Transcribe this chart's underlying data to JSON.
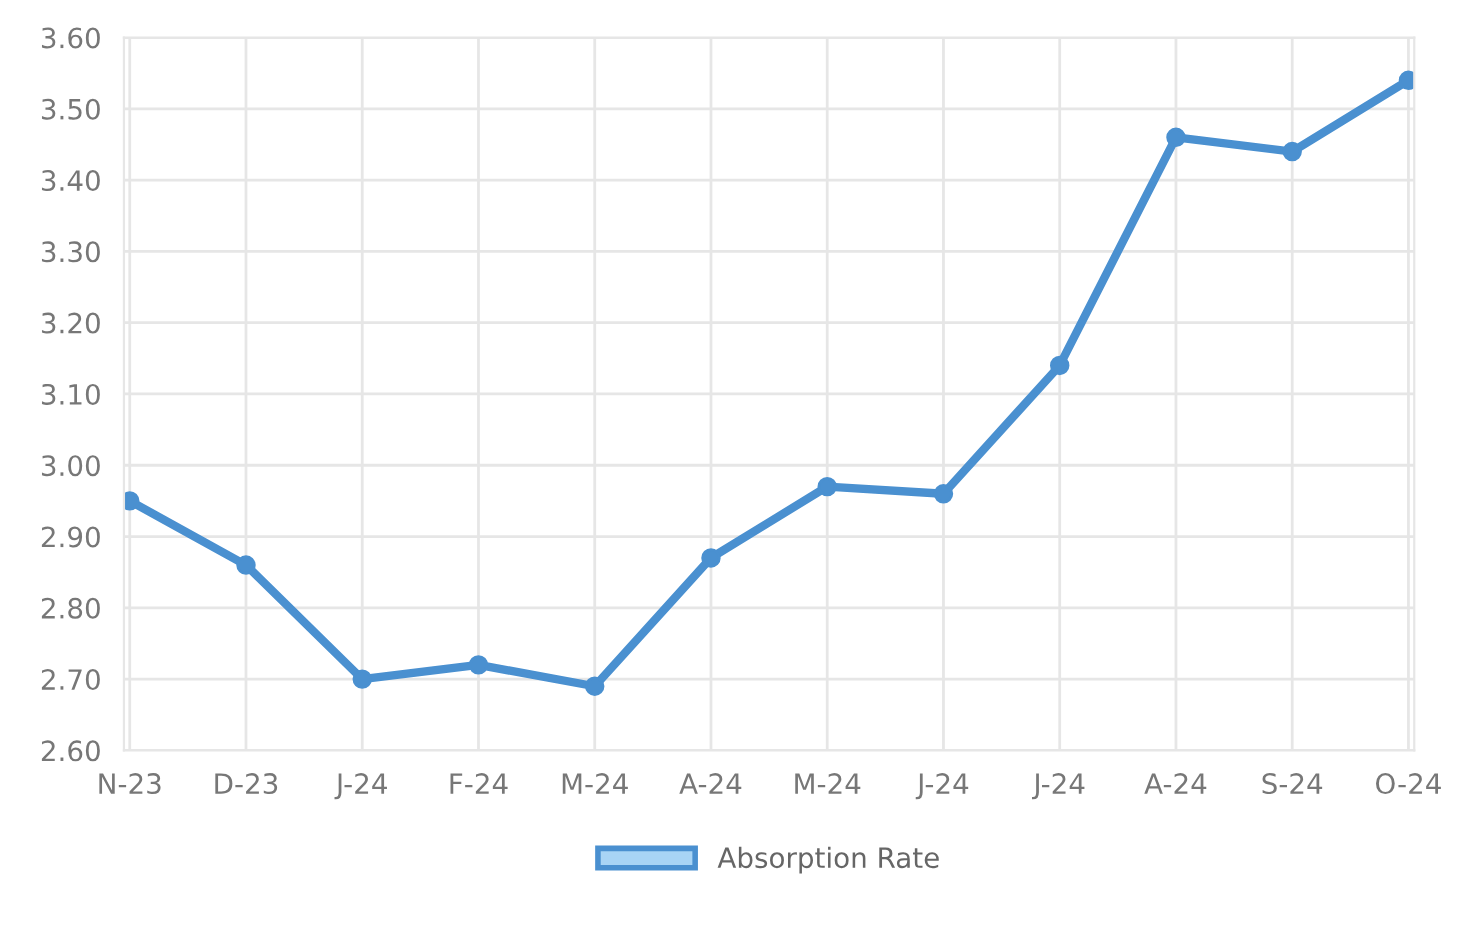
{
  "chart_data": {
    "type": "line",
    "categories": [
      "N-23",
      "D-23",
      "J-24",
      "F-24",
      "M-24",
      "A-24",
      "M-24",
      "J-24",
      "J-24",
      "A-24",
      "S-24",
      "O-24"
    ],
    "series": [
      {
        "name": "Absorption Rate",
        "color": "#4a90d0",
        "values": [
          2.95,
          2.86,
          2.7,
          2.72,
          2.69,
          2.87,
          2.97,
          2.96,
          3.14,
          3.46,
          3.44,
          3.54
        ]
      }
    ],
    "ylim": [
      2.6,
      3.6
    ],
    "yticks": [
      {
        "value": 2.6,
        "label": "2.60"
      },
      {
        "value": 2.7,
        "label": "2.70"
      },
      {
        "value": 2.8,
        "label": "2.80"
      },
      {
        "value": 2.9,
        "label": "2.90"
      },
      {
        "value": 3.0,
        "label": "3.00"
      },
      {
        "value": 3.1,
        "label": "3.10"
      },
      {
        "value": 3.2,
        "label": "3.20"
      },
      {
        "value": 3.3,
        "label": "3.30"
      },
      {
        "value": 3.4,
        "label": "3.40"
      },
      {
        "value": 3.5,
        "label": "3.50"
      },
      {
        "value": 3.6,
        "label": "3.60"
      }
    ],
    "grid": true,
    "legend": "bottom",
    "marker": "circle",
    "line_style": "solid"
  }
}
